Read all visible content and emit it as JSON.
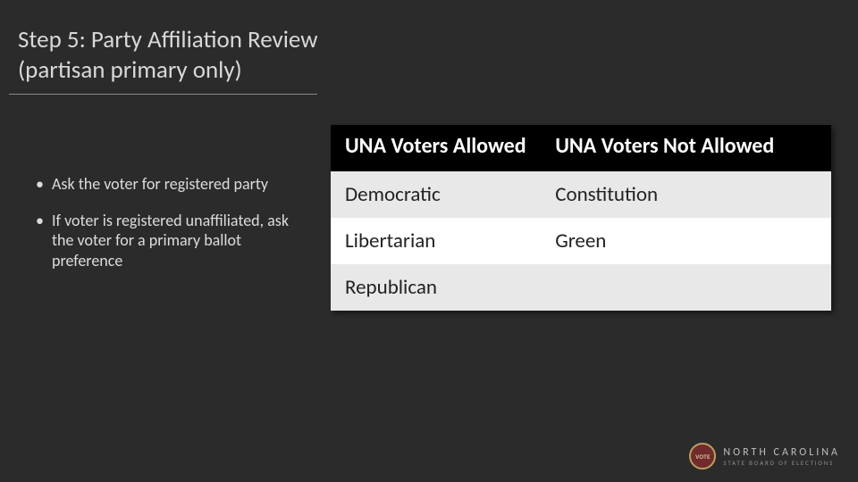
{
  "title": {
    "line1": "Step 5: Party Affiliation Review",
    "line2": " (partisan primary only)",
    "fontsize": 27,
    "color": "#d8d8d8",
    "underline_color": "#888888"
  },
  "bullets": {
    "items": [
      "Ask the voter for registered party",
      "If voter is registered unaffiliated, ask the voter for a primary ballot preference"
    ],
    "fontsize": 18,
    "color": "#dcdcdc"
  },
  "table": {
    "type": "table",
    "columns": [
      "UNA Voters Allowed",
      "UNA Voters Not Allowed"
    ],
    "rows": [
      [
        "Democratic",
        "Constitution"
      ],
      [
        "Libertarian",
        "Green"
      ],
      [
        "Republican",
        ""
      ]
    ],
    "header_bg": "#000000",
    "header_color": "#ffffff",
    "header_fontsize": 24,
    "cell_fontsize": 23,
    "cell_color": "#222222",
    "row_even_bg": "#e8e8e8",
    "row_odd_bg": "#ffffff",
    "col_widths": [
      "42%",
      "58%"
    ]
  },
  "footer": {
    "logo_top": "NORTH CAROLINA",
    "logo_bottom": "STATE BOARD OF ELECTIONS",
    "seal_text": "VOTE",
    "seal_bg": "#7a2b2b",
    "seal_border": "#caa96a",
    "top_color": "#cfcfcf",
    "bottom_color": "#9a9a9a"
  },
  "background_color": "#2b2b2b"
}
